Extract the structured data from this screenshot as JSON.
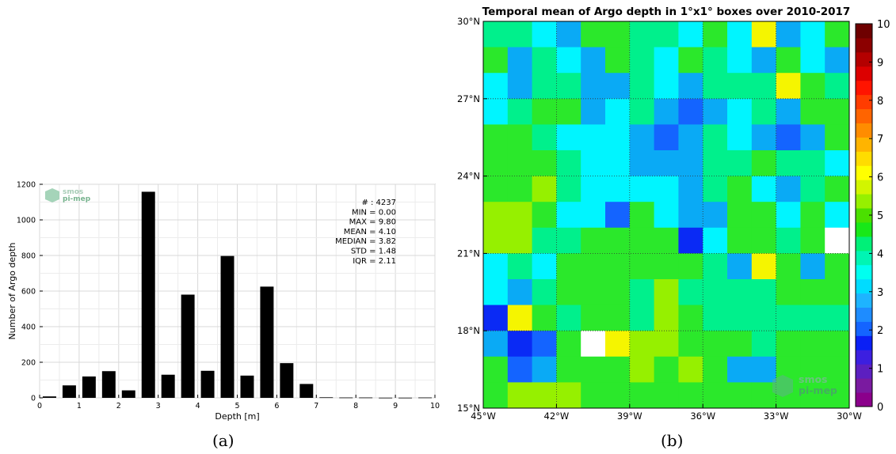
{
  "captions": {
    "a": "(a)",
    "b": "(b)"
  },
  "chart_data": [
    {
      "panel": "a",
      "type": "bar",
      "xlabel": "Depth [m]",
      "ylabel": "Number of Argo depth",
      "xlim": [
        0,
        10
      ],
      "ylim": [
        0,
        1200
      ],
      "xticks": [
        "0",
        "1",
        "2",
        "3",
        "4",
        "5",
        "6",
        "7",
        "8",
        "9",
        "10"
      ],
      "yticks": [
        "0",
        "200",
        "400",
        "600",
        "800",
        "1000",
        "1200"
      ],
      "grid": true,
      "logo": [
        "smos",
        "pi-mep"
      ],
      "bar_color": "#000000",
      "bars": [
        {
          "x": 0.25,
          "value": 8
        },
        {
          "x": 0.75,
          "value": 70
        },
        {
          "x": 1.25,
          "value": 120
        },
        {
          "x": 1.75,
          "value": 150
        },
        {
          "x": 2.25,
          "value": 42
        },
        {
          "x": 2.75,
          "value": 1158
        },
        {
          "x": 3.25,
          "value": 130
        },
        {
          "x": 3.75,
          "value": 580
        },
        {
          "x": 4.25,
          "value": 152
        },
        {
          "x": 4.75,
          "value": 797
        },
        {
          "x": 5.25,
          "value": 125
        },
        {
          "x": 5.75,
          "value": 625
        },
        {
          "x": 6.25,
          "value": 195
        },
        {
          "x": 6.75,
          "value": 78
        },
        {
          "x": 7.25,
          "value": 3
        },
        {
          "x": 7.75,
          "value": 2
        },
        {
          "x": 8.25,
          "value": 2
        },
        {
          "x": 8.75,
          "value": 1
        },
        {
          "x": 9.25,
          "value": 1
        },
        {
          "x": 9.75,
          "value": 2
        }
      ],
      "stats": [
        "# : 4237",
        "MIN = 0.00",
        "MAX =  9.80",
        "MEAN = 4.10",
        "MEDIAN = 3.82",
        "STD = 1.48",
        "IQR = 2.11"
      ]
    },
    {
      "panel": "b",
      "type": "heatmap",
      "title": "Temporal mean of Argo depth in 1°x1° boxes over 2010-2017",
      "x_range": [
        -45,
        -30
      ],
      "y_range": [
        15,
        30
      ],
      "xticks": [
        "45°W",
        "42°W",
        "39°W",
        "36°W",
        "33°W",
        "30°W"
      ],
      "yticks": [
        "15°N",
        "18°N",
        "21°N",
        "24°N",
        "27°N",
        "30°N"
      ],
      "grid": true,
      "logo": [
        "smos",
        "pi-mep"
      ],
      "colorbar": {
        "range": [
          0,
          10
        ],
        "ticks": [
          "0",
          "1",
          "2",
          "3",
          "4",
          "5",
          "6",
          "7",
          "8",
          "9",
          "10"
        ],
        "colors": [
          "#8b008b",
          "#7a1aa0",
          "#5c1fc0",
          "#3c1fe0",
          "#0a1ff5",
          "#1464ff",
          "#1e8cff",
          "#1eb4ff",
          "#00dcff",
          "#00fff0",
          "#00f5b4",
          "#00f078",
          "#18e818",
          "#4be000",
          "#96f000",
          "#d2f500",
          "#ffff00",
          "#ffdc00",
          "#ffb400",
          "#ff8c00",
          "#ff6400",
          "#ff3c00",
          "#ff1400",
          "#dc0000",
          "#b40000",
          "#8c0000",
          "#6e0000"
        ]
      },
      "cells_note_legend": {
        "W": "white (no data)"
      },
      "rows_north_to_south": [
        "GGCBLLGGCLCYBC",
        "LBGCBLGCLGCBLCB",
        "CBGGBBGCBGGGYLG",
        "CGLLBCGBDBCGBL",
        "LLGCCCBDBGCBDB",
        "LLLGCCBBBGGLGGC",
        "LLSGCCCCBGLCBGL",
        "SSLCCDLCBBLLCLC",
        "SSGGLLLLXCLLGLW",
        "CGCLLLLLLGBYLB",
        "CBGLLLGSGGGGLL",
        "XYLGLLGSLGGGGGG",
        "BXDLWYSSLLLGLL",
        "LDBLLLSLSLBBLLL",
        "LSSSLLLLLLLLLLL"
      ]
    }
  ]
}
